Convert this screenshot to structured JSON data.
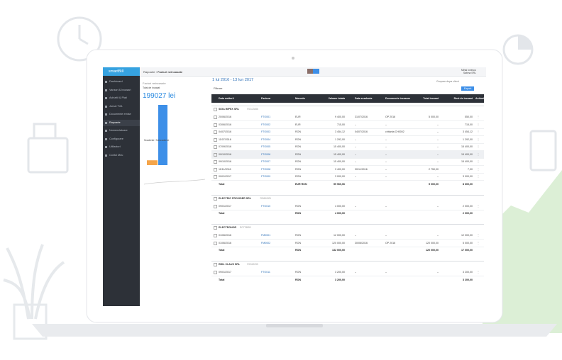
{
  "sidebar": {
    "logo": "smartBill",
    "items": [
      "Dashboard",
      "Vanzari & Incasari",
      "Achizitii & Plati",
      "Jurnal TVA",
      "Documente emise",
      "Rapoarte",
      "Nomenclatoare",
      "Configurare",
      "Utilizatori",
      "Contul Meu"
    ],
    "active": 5
  },
  "header": {
    "breadcrumb": [
      "Rapoarte",
      "Facturi neincasate"
    ],
    "user": "Mihai Ionescu",
    "company": "Sabina SRL"
  },
  "summary": {
    "title": "Facturi neincasate",
    "subtitle": "Total de incasat",
    "total": "199027 lei",
    "legend": "Scadente / Nescadente",
    "bars": [
      8,
      100
    ],
    "bar_colors": [
      "#f5a54a",
      "#3d8fe8"
    ]
  },
  "report": {
    "date_range": "1 Iul 2016 - 13 Iun 2017",
    "filter": "Filtrare",
    "grouping": "Grupare dupa client",
    "export": "Export",
    "columns": [
      "Data emiterii",
      "Factura",
      "Moneda",
      "Valoare totala",
      "Data scadenta",
      "Documente incasare",
      "Total incasat",
      "Rest de incasat",
      "Actiuni"
    ],
    "groups": [
      {
        "name": "SIGA IMPEX SRL",
        "cif": "RO123456",
        "rows": [
          [
            "20/06/2016",
            "FTO001",
            "EUR",
            "9 400,00",
            "31/07/2016",
            "OP 2016",
            "5 000,00",
            "550,00"
          ],
          [
            "03/06/2016",
            "FTO002",
            "EUR",
            "715,00",
            "–",
            "–",
            "–",
            "715,00"
          ],
          [
            "04/07/2016",
            "FTO003",
            "RON",
            "3 454,12",
            "04/07/2016",
            "chitanta CH0002",
            "–",
            "3 454,12"
          ],
          [
            "11/07/2016",
            "FTO004",
            "RON",
            "1 292,00",
            "–",
            "–",
            "–",
            "1 292,00"
          ],
          [
            "07/09/2016",
            "FTO005",
            "RON",
            "15 400,00",
            "–",
            "–",
            "–",
            "15 400,00"
          ],
          [
            "09/10/2016",
            "FTO006",
            "RON",
            "15 400,00",
            "–",
            "–",
            "–",
            "15 400,00"
          ],
          [
            "09/10/2016",
            "FTO007",
            "RON",
            "15 400,00",
            "–",
            "–",
            "–",
            "15 400,00"
          ],
          [
            "11/11/2016",
            "FTO008",
            "RON",
            "3 400,00",
            "30/11/2016",
            "–",
            "2 750,00",
            "7,00"
          ],
          [
            "09/01/2017",
            "FTO009",
            "RON",
            "3 000,00",
            "–",
            "–",
            "–",
            "3 000,00"
          ]
        ],
        "total": [
          "Total",
          "",
          "EUR RON",
          "59 960,06",
          "",
          "",
          "5 000,00",
          "8 600,00"
        ]
      },
      {
        "name": "ELECTRIC PROVIDER SRL",
        "cif": "RO654321",
        "rows": [
          [
            "09/01/2017",
            "FTO010",
            "RON",
            "4 000,00",
            "–",
            "–",
            "–",
            "2 000,00"
          ]
        ],
        "total": [
          "Total",
          "",
          "RON",
          "4 000,00",
          "",
          "",
          "",
          "2 000,00"
        ]
      },
      {
        "name": "ELECTRONOR",
        "cif": "RO778899",
        "rows": [
          [
            "01/06/2016",
            "FM0001",
            "RON",
            "12 000,00",
            "–",
            "–",
            "–",
            "12 000,00"
          ],
          [
            "01/06/2016",
            "FM0002",
            "RON",
            "120 000,00",
            "30/06/2016",
            "OP 2016",
            "120 000,00",
            "5 000,00"
          ]
        ],
        "total": [
          "Total",
          "",
          "RON",
          "132 000,00",
          "",
          "",
          "120 000,00",
          "17 000,00"
        ]
      },
      {
        "name": "EMIL CLAUS SRL",
        "cif": "RO112233",
        "rows": [
          [
            "09/01/2017",
            "FTO011",
            "RON",
            "3 200,00",
            "–",
            "–",
            "–",
            "3 200,00"
          ]
        ],
        "total": [
          "Total",
          "",
          "RON",
          "3 200,00",
          "",
          "",
          "",
          "3 200,00"
        ]
      }
    ]
  }
}
